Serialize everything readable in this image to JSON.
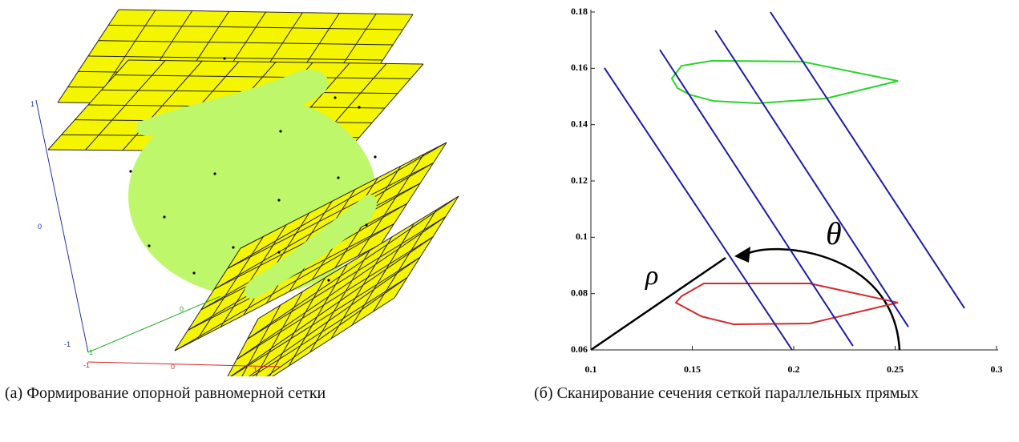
{
  "figure_a": {
    "axis_labels": [
      "1",
      "0",
      "-1",
      "1",
      "0",
      "-1",
      "0",
      "1"
    ],
    "caption": "(а) Формирование опорной равномерной сетки"
  },
  "figure_b": {
    "xlim": [
      0.1,
      0.3
    ],
    "ylim": [
      0.06,
      0.18
    ],
    "xticks": [
      0.1,
      0.15,
      0.2,
      0.25,
      0.3
    ],
    "yticks": [
      0.06,
      0.08,
      0.1,
      0.12,
      0.14,
      0.16,
      0.18
    ],
    "line_color": "#1c1caa",
    "scan_lines": [
      {
        "x": [
          0.1067,
          0.1992
        ],
        "y": [
          0.1601,
          0.06
        ]
      },
      {
        "x": [
          0.134,
          0.2292
        ],
        "y": [
          0.1666,
          0.0614
        ]
      },
      {
        "x": [
          0.1613,
          0.2565
        ],
        "y": [
          0.1735,
          0.0682
        ]
      },
      {
        "x": [
          0.1885,
          0.2842
        ],
        "y": [
          0.18,
          0.0748
        ]
      }
    ],
    "contours": [
      {
        "color": "#2ad42a",
        "x": [
          0.1399,
          0.1447,
          0.1597,
          0.204,
          0.2514,
          0.2158,
          0.1822,
          0.1605,
          0.1486,
          0.1427
        ],
        "y": [
          0.1564,
          0.1609,
          0.1627,
          0.1624,
          0.1555,
          0.1493,
          0.1476,
          0.1484,
          0.1507,
          0.153
        ]
      },
      {
        "color": "#d42a2a",
        "x": [
          0.1447,
          0.1557,
          0.2079,
          0.2514,
          0.2079,
          0.1704,
          0.1545,
          0.1419
        ],
        "y": [
          0.0791,
          0.0836,
          0.0836,
          0.0768,
          0.0694,
          0.0691,
          0.0719,
          0.0768
        ]
      }
    ],
    "rho_label": "ρ",
    "theta_label": "θ",
    "caption": "(б) Сканирование сечения сеткой параллельных прямых"
  }
}
